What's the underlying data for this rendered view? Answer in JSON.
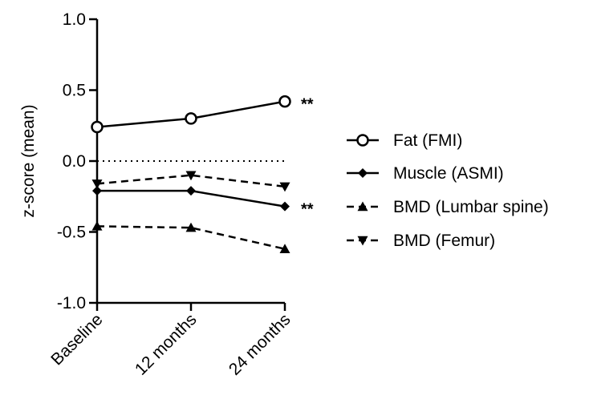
{
  "chart_data": {
    "type": "line",
    "title": "",
    "xlabel": "",
    "ylabel": "z-score (mean)",
    "ylim": [
      -1.0,
      1.0
    ],
    "yticks": [
      "1.0",
      "0.5",
      "0.0",
      "-0.5",
      "-1.0"
    ],
    "yticks_values": [
      1.0,
      0.5,
      0.0,
      -0.5,
      -1.0
    ],
    "categories": [
      "Baseline",
      "12 months",
      "24 months"
    ],
    "reference_line": {
      "y": 0.0,
      "style": "dotted"
    },
    "legend_position": "right",
    "series": [
      {
        "name": "Fat (FMI)",
        "values": [
          0.24,
          0.3,
          0.42
        ],
        "marker": "open-circle",
        "line": "solid",
        "annotation": "**"
      },
      {
        "name": "Muscle (ASMI)",
        "values": [
          -0.21,
          -0.21,
          -0.32
        ],
        "marker": "diamond",
        "line": "solid",
        "annotation": "**"
      },
      {
        "name": "BMD (Lumbar spine)",
        "values": [
          -0.46,
          -0.47,
          -0.62
        ],
        "marker": "triangle-up",
        "line": "dashed",
        "annotation": ""
      },
      {
        "name": "BMD (Femur)",
        "values": [
          -0.16,
          -0.1,
          -0.18
        ],
        "marker": "triangle-down",
        "line": "dashed",
        "annotation": ""
      }
    ]
  }
}
